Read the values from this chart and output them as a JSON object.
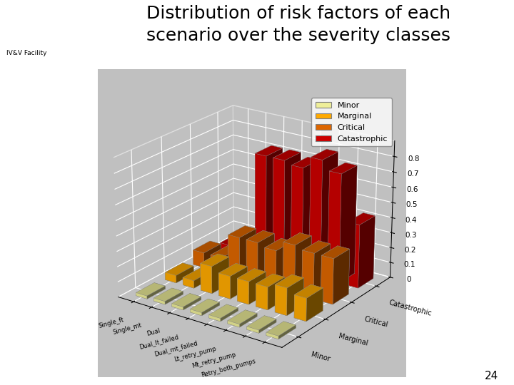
{
  "title": "Distribution of risk factors of each\nscenario over the severity classes",
  "title_fontsize": 18,
  "scenarios": [
    "Single_ft",
    "Single_mt",
    "Dual",
    "Dual_lt_failed",
    "Dual_mt_failed",
    "Lt_retry_pump",
    "Mt_retry_pump",
    "Retry_both_pumps"
  ],
  "severity_classes": [
    "Minor",
    "Marginal",
    "Critical",
    "Catastrophic"
  ],
  "data": {
    "Minor": [
      0.02,
      0.02,
      0.02,
      0.02,
      0.02,
      0.02,
      0.02,
      0.02
    ],
    "Marginal": [
      0.05,
      0.05,
      0.18,
      0.15,
      0.15,
      0.15,
      0.18,
      0.15
    ],
    "Critical": [
      0.1,
      0.1,
      0.27,
      0.27,
      0.25,
      0.32,
      0.3,
      0.3
    ],
    "Catastrophic": [
      0.05,
      0.05,
      0.72,
      0.72,
      0.7,
      0.78,
      0.72,
      0.42
    ]
  },
  "colors": {
    "Minor": "#EEEE99",
    "Marginal": "#FFAA00",
    "Critical": "#DD6600",
    "Catastrophic": "#CC0000"
  },
  "zlim": [
    0,
    0.9
  ],
  "zticks": [
    0,
    0.1,
    0.2,
    0.3,
    0.4,
    0.5,
    0.6,
    0.7,
    0.8
  ],
  "pane_color": "#C0C0C0",
  "page_background": "#FFFFFF",
  "header_blue": "#1a3a8a",
  "header_gold": "#D4AA00",
  "footer_num": "24",
  "elev": 22,
  "azim": -55
}
